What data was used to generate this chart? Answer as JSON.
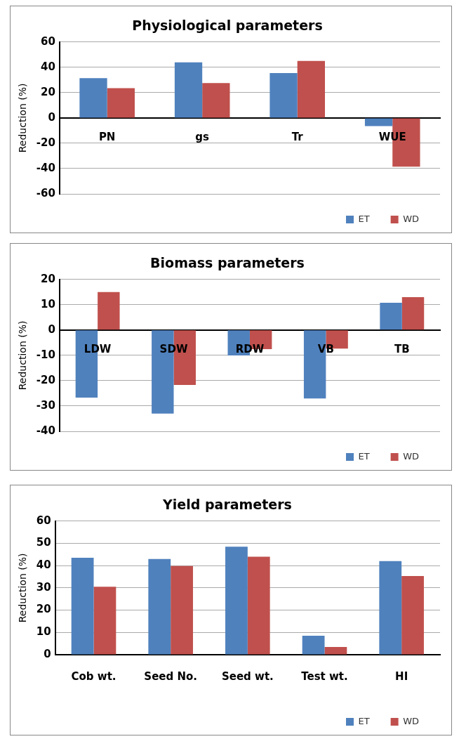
{
  "chart_data": [
    {
      "type": "bar",
      "title": "Physiological parameters",
      "ylabel": "Reduction (%)",
      "categories": [
        "PN",
        "gs",
        "Tr",
        "WUE"
      ],
      "series": [
        {
          "name": "ET",
          "color": "#4f81bd",
          "values": [
            31.5,
            44,
            35.5,
            -6.5
          ]
        },
        {
          "name": "WD",
          "color": "#c0504d",
          "values": [
            23.5,
            27.5,
            45,
            -38.5
          ]
        }
      ],
      "ylim": [
        -60,
        60
      ],
      "yticks": [
        -60,
        -40,
        -20,
        0,
        20,
        40,
        60
      ],
      "grid": "y",
      "legend": "bottom right"
    },
    {
      "type": "bar",
      "title": "Biomass parameters",
      "ylabel": "Reduction (%)",
      "categories": [
        "LDW",
        "SDW",
        "RDW",
        "VB",
        "TB"
      ],
      "series": [
        {
          "name": "ET",
          "color": "#4f81bd",
          "values": [
            -26.7,
            -33,
            -10,
            -27,
            10.8
          ]
        },
        {
          "name": "WD",
          "color": "#c0504d",
          "values": [
            15,
            -21.7,
            -7.5,
            -7.3,
            13
          ]
        }
      ],
      "ylim": [
        -40,
        20
      ],
      "yticks": [
        -40,
        -30,
        -20,
        -10,
        0,
        10,
        20
      ],
      "grid": "y",
      "legend": "bottom right"
    },
    {
      "type": "bar",
      "title": "Yield parameters",
      "ylabel": "Reduction (%)",
      "categories": [
        "Cob wt.",
        "Seed No.",
        "Seed wt.",
        "Test wt.",
        "HI"
      ],
      "series": [
        {
          "name": "ET",
          "color": "#4f81bd",
          "values": [
            43.5,
            43,
            48.5,
            8.5,
            42
          ]
        },
        {
          "name": "WD",
          "color": "#c0504d",
          "values": [
            30.5,
            39.8,
            44,
            3.5,
            35.3
          ]
        }
      ],
      "ylim": [
        0,
        60
      ],
      "yticks": [
        0,
        10,
        20,
        30,
        40,
        50,
        60
      ],
      "grid": "y",
      "legend": "bottom right"
    }
  ]
}
